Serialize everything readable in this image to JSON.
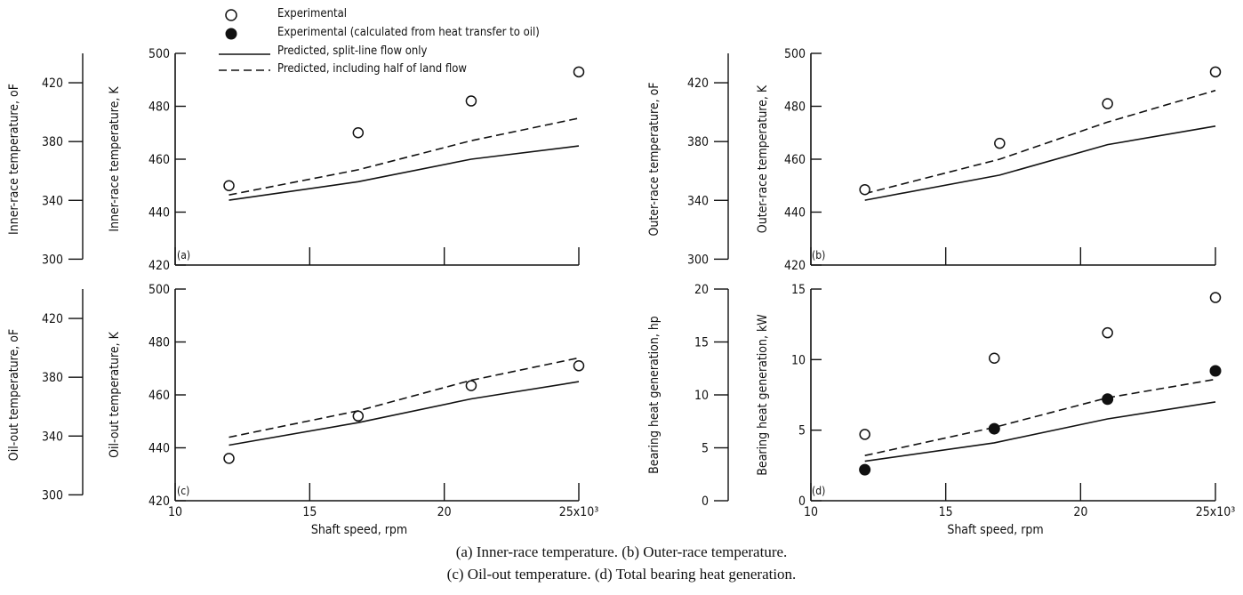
{
  "legend": {
    "experimental": "Experimental",
    "experimental_oil": "Experimental (calculated from heat transfer to oil)",
    "predicted_split": "Predicted, split-line flow only",
    "predicted_half": "Predicted, including half of land flow"
  },
  "captions": {
    "line1": "(a) Inner-race temperature.   (b) Outer-race temperature.",
    "line2": "(c) Oil-out temperature.   (d) Total bearing heat generation."
  },
  "chart_data": [
    {
      "panel": "(a)",
      "type": "line",
      "xlabel": "",
      "xlim": [
        10000,
        25000
      ],
      "xticks": [
        10,
        15,
        20,
        25
      ],
      "xtick_labels": [],
      "ylabel": "Inner-race temperature, K",
      "ylim": [
        420,
        500
      ],
      "yticks": [
        420,
        440,
        460,
        480,
        500
      ],
      "ylabel2": "Inner-race temperature, °F",
      "ylim2": [
        296,
        440
      ],
      "yticks2": [
        300,
        340,
        380,
        420
      ],
      "experimental": {
        "x": [
          12000,
          16800,
          21000,
          25000
        ],
        "y": [
          450,
          470,
          482,
          493
        ]
      },
      "experimental_oil": {
        "x": [],
        "y": []
      },
      "predicted_split": {
        "x": [
          12000,
          16800,
          21000,
          25000
        ],
        "y": [
          444.5,
          451.5,
          460,
          465
        ]
      },
      "predicted_half": {
        "x": [
          12000,
          16800,
          21000,
          25000
        ],
        "y": [
          446.5,
          456,
          467,
          475.5
        ]
      }
    },
    {
      "panel": "(b)",
      "type": "line",
      "xlabel": "",
      "xlim": [
        10000,
        25000
      ],
      "xticks": [
        10,
        15,
        20,
        25
      ],
      "xtick_labels": [],
      "ylabel": "Outer-race temperature, K",
      "ylim": [
        420,
        500
      ],
      "yticks": [
        420,
        440,
        460,
        480,
        500
      ],
      "ylabel2": "Outer-race temperature, °F",
      "ylim2": [
        296,
        440
      ],
      "yticks2": [
        300,
        340,
        380,
        420
      ],
      "experimental": {
        "x": [
          12000,
          17000,
          21000,
          25000
        ],
        "y": [
          448.5,
          466,
          481,
          493
        ]
      },
      "experimental_oil": {
        "x": [],
        "y": []
      },
      "predicted_split": {
        "x": [
          12000,
          17000,
          21000,
          25000
        ],
        "y": [
          444.5,
          454,
          465.5,
          472.5
        ]
      },
      "predicted_half": {
        "x": [
          12000,
          17000,
          21000,
          25000
        ],
        "y": [
          447,
          460,
          474,
          486
        ]
      }
    },
    {
      "panel": "(c)",
      "type": "line",
      "xlabel": "Shaft speed, rpm",
      "xlim": [
        10000,
        25000
      ],
      "xticks": [
        10,
        15,
        20,
        25
      ],
      "xtick_labels": [
        "10",
        "15",
        "20",
        "25x10³"
      ],
      "ylabel": "Oil-out temperature, K",
      "ylim": [
        420,
        500
      ],
      "yticks": [
        420,
        440,
        460,
        480,
        500
      ],
      "ylabel2": "Oil-out temperature, °F",
      "ylim2": [
        296,
        440
      ],
      "yticks2": [
        300,
        340,
        380,
        420
      ],
      "experimental": {
        "x": [
          12000,
          16800,
          21000,
          25000
        ],
        "y": [
          436,
          452,
          463.5,
          471
        ]
      },
      "experimental_oil": {
        "x": [],
        "y": []
      },
      "predicted_split": {
        "x": [
          12000,
          16800,
          21000,
          25000
        ],
        "y": [
          441,
          449.5,
          458.5,
          465
        ]
      },
      "predicted_half": {
        "x": [
          12000,
          16800,
          21000,
          25000
        ],
        "y": [
          444,
          454,
          465.5,
          474
        ]
      }
    },
    {
      "panel": "(d)",
      "type": "line",
      "xlabel": "Shaft speed, rpm",
      "xlim": [
        10000,
        25000
      ],
      "xticks": [
        10,
        15,
        20,
        25
      ],
      "xtick_labels": [
        "10",
        "15",
        "20",
        "25x10³"
      ],
      "ylabel": "Bearing heat generation, kW",
      "ylim": [
        0,
        15
      ],
      "yticks": [
        0,
        5,
        10,
        15
      ],
      "ylabel2": "Bearing heat generation, hp",
      "ylim2": [
        0,
        20
      ],
      "yticks2": [
        0,
        5,
        10,
        15,
        20
      ],
      "experimental": {
        "x": [
          12000,
          16800,
          21000,
          25000
        ],
        "y": [
          4.7,
          10.1,
          11.9,
          14.4
        ]
      },
      "experimental_oil": {
        "x": [
          12000,
          16800,
          21000,
          25000
        ],
        "y": [
          2.2,
          5.1,
          7.2,
          9.2
        ]
      },
      "predicted_split": {
        "x": [
          12000,
          16800,
          21000,
          25000
        ],
        "y": [
          2.8,
          4.1,
          5.8,
          7.0
        ]
      },
      "predicted_half": {
        "x": [
          12000,
          16800,
          21000,
          25000
        ],
        "y": [
          3.2,
          5.2,
          7.3,
          8.6
        ]
      }
    }
  ]
}
